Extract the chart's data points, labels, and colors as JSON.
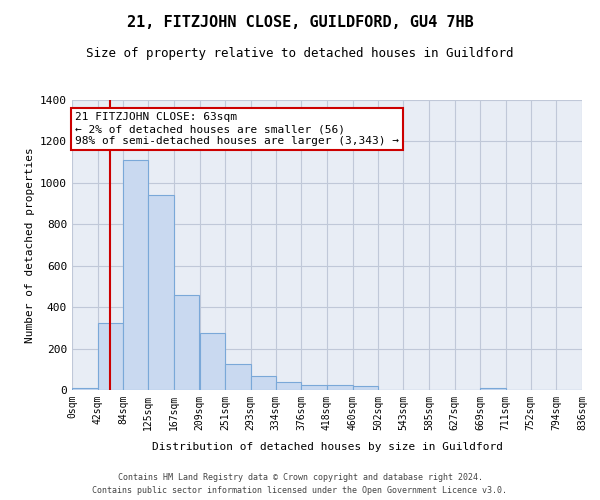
{
  "title": "21, FITZJOHN CLOSE, GUILDFORD, GU4 7HB",
  "subtitle": "Size of property relative to detached houses in Guildford",
  "xlabel": "Distribution of detached houses by size in Guildford",
  "ylabel": "Number of detached properties",
  "footer_line1": "Contains HM Land Registry data © Crown copyright and database right 2024.",
  "footer_line2": "Contains public sector information licensed under the Open Government Licence v3.0.",
  "bar_edges": [
    0,
    42,
    84,
    125,
    167,
    209,
    251,
    293,
    334,
    376,
    418,
    460,
    502,
    543,
    585,
    627,
    669,
    711,
    752,
    794,
    836
  ],
  "bar_heights": [
    10,
    325,
    1110,
    940,
    460,
    275,
    125,
    70,
    40,
    25,
    25,
    20,
    0,
    0,
    0,
    0,
    10,
    0,
    0,
    0
  ],
  "bar_color": "#c9d9f0",
  "bar_edge_color": "#7aa8d8",
  "bar_linewidth": 0.8,
  "grid_color": "#c0c8d8",
  "background_color": "#e8edf5",
  "property_value": 63,
  "red_line_color": "#cc0000",
  "annotation_line1": "21 FITZJOHN CLOSE: 63sqm",
  "annotation_line2": "← 2% of detached houses are smaller (56)",
  "annotation_line3": "98% of semi-detached houses are larger (3,343) →",
  "annotation_box_color": "#cc0000",
  "ylim": [
    0,
    1400
  ],
  "yticks": [
    0,
    200,
    400,
    600,
    800,
    1000,
    1200,
    1400
  ],
  "tick_labels": [
    "0sqm",
    "42sqm",
    "84sqm",
    "125sqm",
    "167sqm",
    "209sqm",
    "251sqm",
    "293sqm",
    "334sqm",
    "376sqm",
    "418sqm",
    "460sqm",
    "502sqm",
    "543sqm",
    "585sqm",
    "627sqm",
    "669sqm",
    "711sqm",
    "752sqm",
    "794sqm",
    "836sqm"
  ],
  "title_fontsize": 11,
  "subtitle_fontsize": 9,
  "ylabel_fontsize": 8,
  "xlabel_fontsize": 8,
  "tick_fontsize": 7,
  "ytick_fontsize": 8,
  "annotation_fontsize": 8,
  "footer_fontsize": 6
}
